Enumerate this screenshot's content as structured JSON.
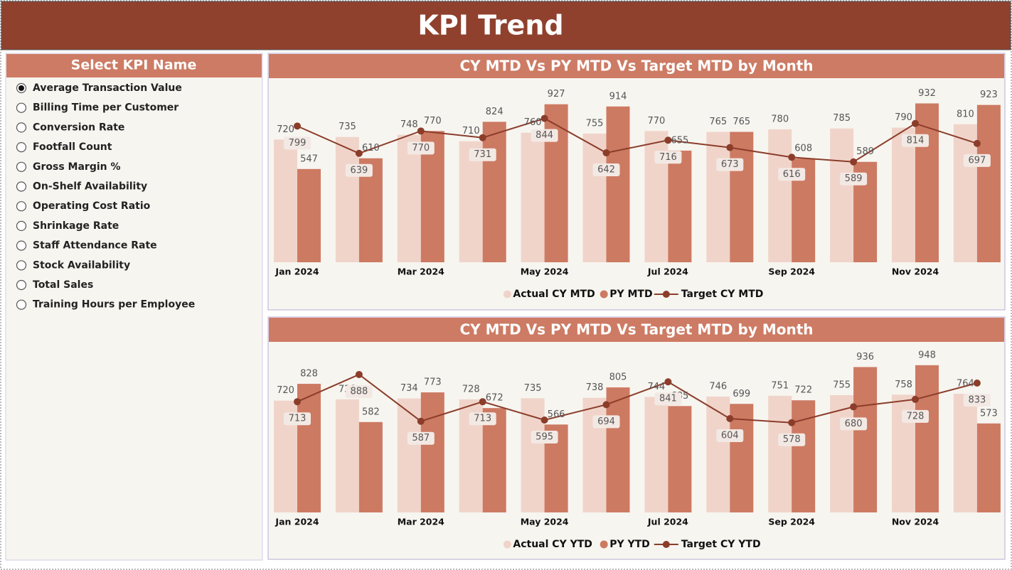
{
  "header": {
    "title": "KPI Trend"
  },
  "slicer": {
    "title": "Select KPI Name",
    "selected": 0,
    "options": [
      "Average Transaction Value",
      "Billing Time per Customer",
      "Conversion Rate",
      "Footfall Count",
      "Gross Margin %",
      "On-Shelf Availability",
      "Operating Cost Ratio",
      "Shrinkage Rate",
      "Staff Attendance Rate",
      "Stock Availability",
      "Total Sales",
      "Training Hours per Employee"
    ]
  },
  "chart_data": [
    {
      "type": "bar_line",
      "title": "CY MTD Vs PY MTD Vs Target MTD by Month",
      "categories": [
        "Jan 2024",
        null,
        "Mar 2024",
        null,
        "May 2024",
        null,
        "Jul 2024",
        null,
        "Sep 2024",
        null,
        "Nov 2024",
        null
      ],
      "ylim": [
        0,
        1080
      ],
      "series": [
        {
          "name": "Actual CY MTD",
          "type": "bar",
          "color": "#f0d4ca",
          "values": [
            720,
            735,
            748,
            710,
            760,
            755,
            770,
            765,
            780,
            785,
            790,
            810
          ]
        },
        {
          "name": "PY MTD",
          "type": "bar",
          "color": "#cd7a62",
          "values": [
            547,
            610,
            770,
            824,
            927,
            914,
            655,
            765,
            608,
            589,
            932,
            923
          ]
        },
        {
          "name": "Target CY MTD",
          "type": "line",
          "color": "#8b3d2a",
          "values": [
            799,
            639,
            770,
            731,
            844,
            642,
            716,
            673,
            616,
            589,
            814,
            697
          ]
        }
      ]
    },
    {
      "type": "bar_line",
      "title": "CY MTD Vs PY MTD Vs Target MTD by Month",
      "categories": [
        "Jan 2024",
        null,
        "Mar 2024",
        null,
        "May 2024",
        null,
        "Jul 2024",
        null,
        "Sep 2024",
        null,
        "Nov 2024",
        null
      ],
      "ylim": [
        0,
        1080
      ],
      "series": [
        {
          "name": "Actual CY YTD",
          "type": "bar",
          "color": "#f0d4ca",
          "values": [
            720,
            728,
            734,
            728,
            735,
            738,
            744,
            746,
            751,
            755,
            758,
            764
          ]
        },
        {
          "name": "PY YTD",
          "type": "bar",
          "color": "#cd7a62",
          "values": [
            828,
            582,
            773,
            672,
            566,
            805,
            685,
            699,
            722,
            936,
            948,
            573
          ]
        },
        {
          "name": "Target CY YTD",
          "type": "line",
          "color": "#8b3d2a",
          "values": [
            713,
            888,
            587,
            713,
            595,
            694,
            841,
            604,
            578,
            680,
            728,
            833
          ]
        }
      ]
    }
  ]
}
